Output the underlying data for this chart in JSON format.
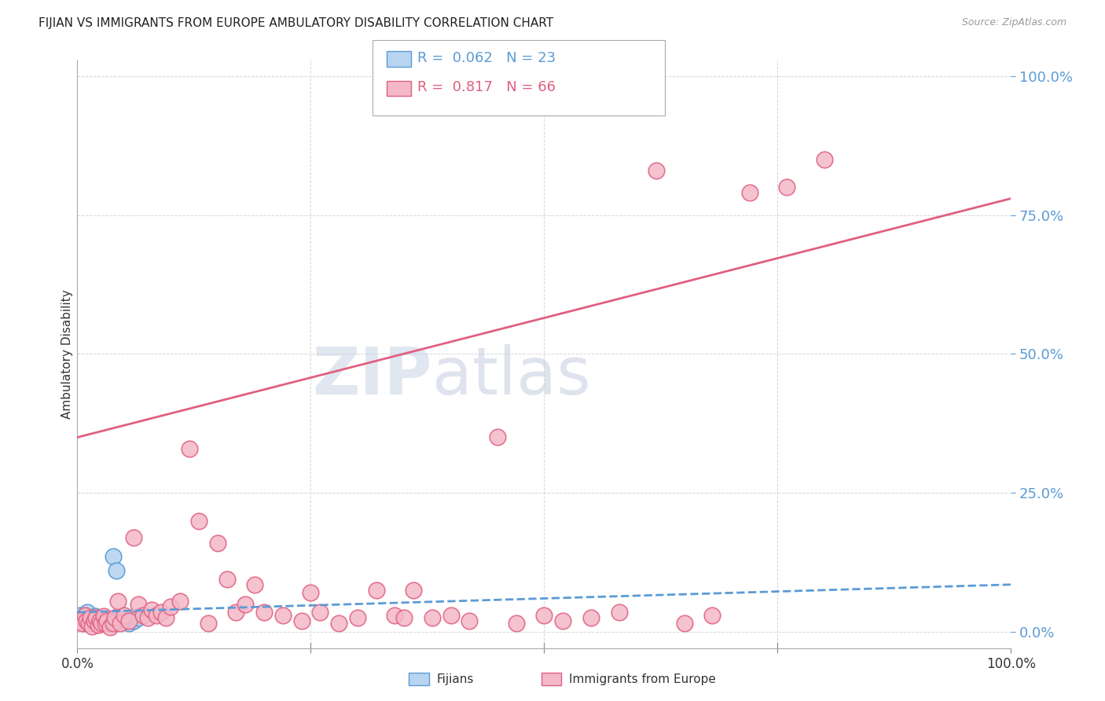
{
  "title": "FIJIAN VS IMMIGRANTS FROM EUROPE AMBULATORY DISABILITY CORRELATION CHART",
  "source": "Source: ZipAtlas.com",
  "ylabel": "Ambulatory Disability",
  "legend_R1": "0.062",
  "legend_N1": "23",
  "legend_R2": "0.817",
  "legend_N2": "66",
  "fijian_fill": "#b8d4f0",
  "fijian_edge": "#5b9bd5",
  "europe_fill": "#f4b8c8",
  "europe_edge": "#e06080",
  "fijian_line_color": "#5b9bd5",
  "europe_line_color": "#e06080",
  "background_color": "#ffffff",
  "grid_color": "#cccccc",
  "watermark_zip_color": "#c8d4e4",
  "watermark_atlas_color": "#c4cce0",
  "fijian_x": [
    0.3,
    0.5,
    0.7,
    0.9,
    1.1,
    1.3,
    1.5,
    1.7,
    1.9,
    2.1,
    2.3,
    2.5,
    2.8,
    3.2,
    3.5,
    4.0,
    4.5,
    5.0,
    5.5,
    6.0,
    3.8,
    4.2,
    6.5
  ],
  "fijian_y": [
    3.0,
    2.5,
    1.5,
    2.0,
    3.5,
    1.8,
    2.5,
    1.5,
    2.8,
    2.0,
    1.5,
    2.2,
    2.0,
    1.8,
    1.5,
    2.0,
    2.5,
    1.8,
    1.5,
    2.0,
    13.5,
    11.0,
    2.5
  ],
  "europe_x": [
    0.2,
    0.5,
    0.8,
    1.0,
    1.2,
    1.4,
    1.6,
    1.8,
    2.0,
    2.2,
    2.4,
    2.6,
    2.8,
    3.0,
    3.2,
    3.5,
    3.8,
    4.0,
    4.3,
    4.6,
    5.0,
    5.5,
    6.0,
    6.5,
    7.0,
    7.5,
    8.0,
    8.5,
    9.0,
    9.5,
    10.0,
    11.0,
    12.0,
    13.0,
    14.0,
    15.0,
    16.0,
    17.0,
    18.0,
    19.0,
    20.0,
    22.0,
    24.0,
    25.0,
    26.0,
    28.0,
    30.0,
    32.0,
    34.0,
    35.0,
    36.0,
    38.0,
    40.0,
    42.0,
    45.0,
    47.0,
    50.0,
    52.0,
    55.0,
    58.0,
    62.0,
    65.0,
    68.0,
    72.0,
    76.0,
    80.0
  ],
  "europe_y": [
    2.0,
    1.5,
    3.0,
    2.0,
    1.5,
    2.5,
    1.0,
    2.0,
    2.5,
    1.2,
    2.0,
    1.5,
    2.8,
    1.5,
    2.0,
    0.8,
    1.5,
    2.5,
    5.5,
    1.5,
    3.0,
    2.0,
    17.0,
    5.0,
    3.0,
    2.5,
    4.0,
    3.0,
    3.5,
    2.5,
    4.5,
    5.5,
    33.0,
    20.0,
    1.5,
    16.0,
    9.5,
    3.5,
    5.0,
    8.5,
    3.5,
    3.0,
    2.0,
    7.0,
    3.5,
    1.5,
    2.5,
    7.5,
    3.0,
    2.5,
    7.5,
    2.5,
    3.0,
    2.0,
    35.0,
    1.5,
    3.0,
    2.0,
    2.5,
    3.5,
    83.0,
    1.5,
    3.0,
    79.0,
    80.0,
    85.0
  ],
  "xmin": 0,
  "xmax": 100,
  "ymin": -3,
  "ymax": 103,
  "yticks": [
    0,
    25,
    50,
    75,
    100
  ],
  "xticks_show": [
    0,
    100
  ],
  "xtick_minor": [
    25,
    50,
    75
  ]
}
